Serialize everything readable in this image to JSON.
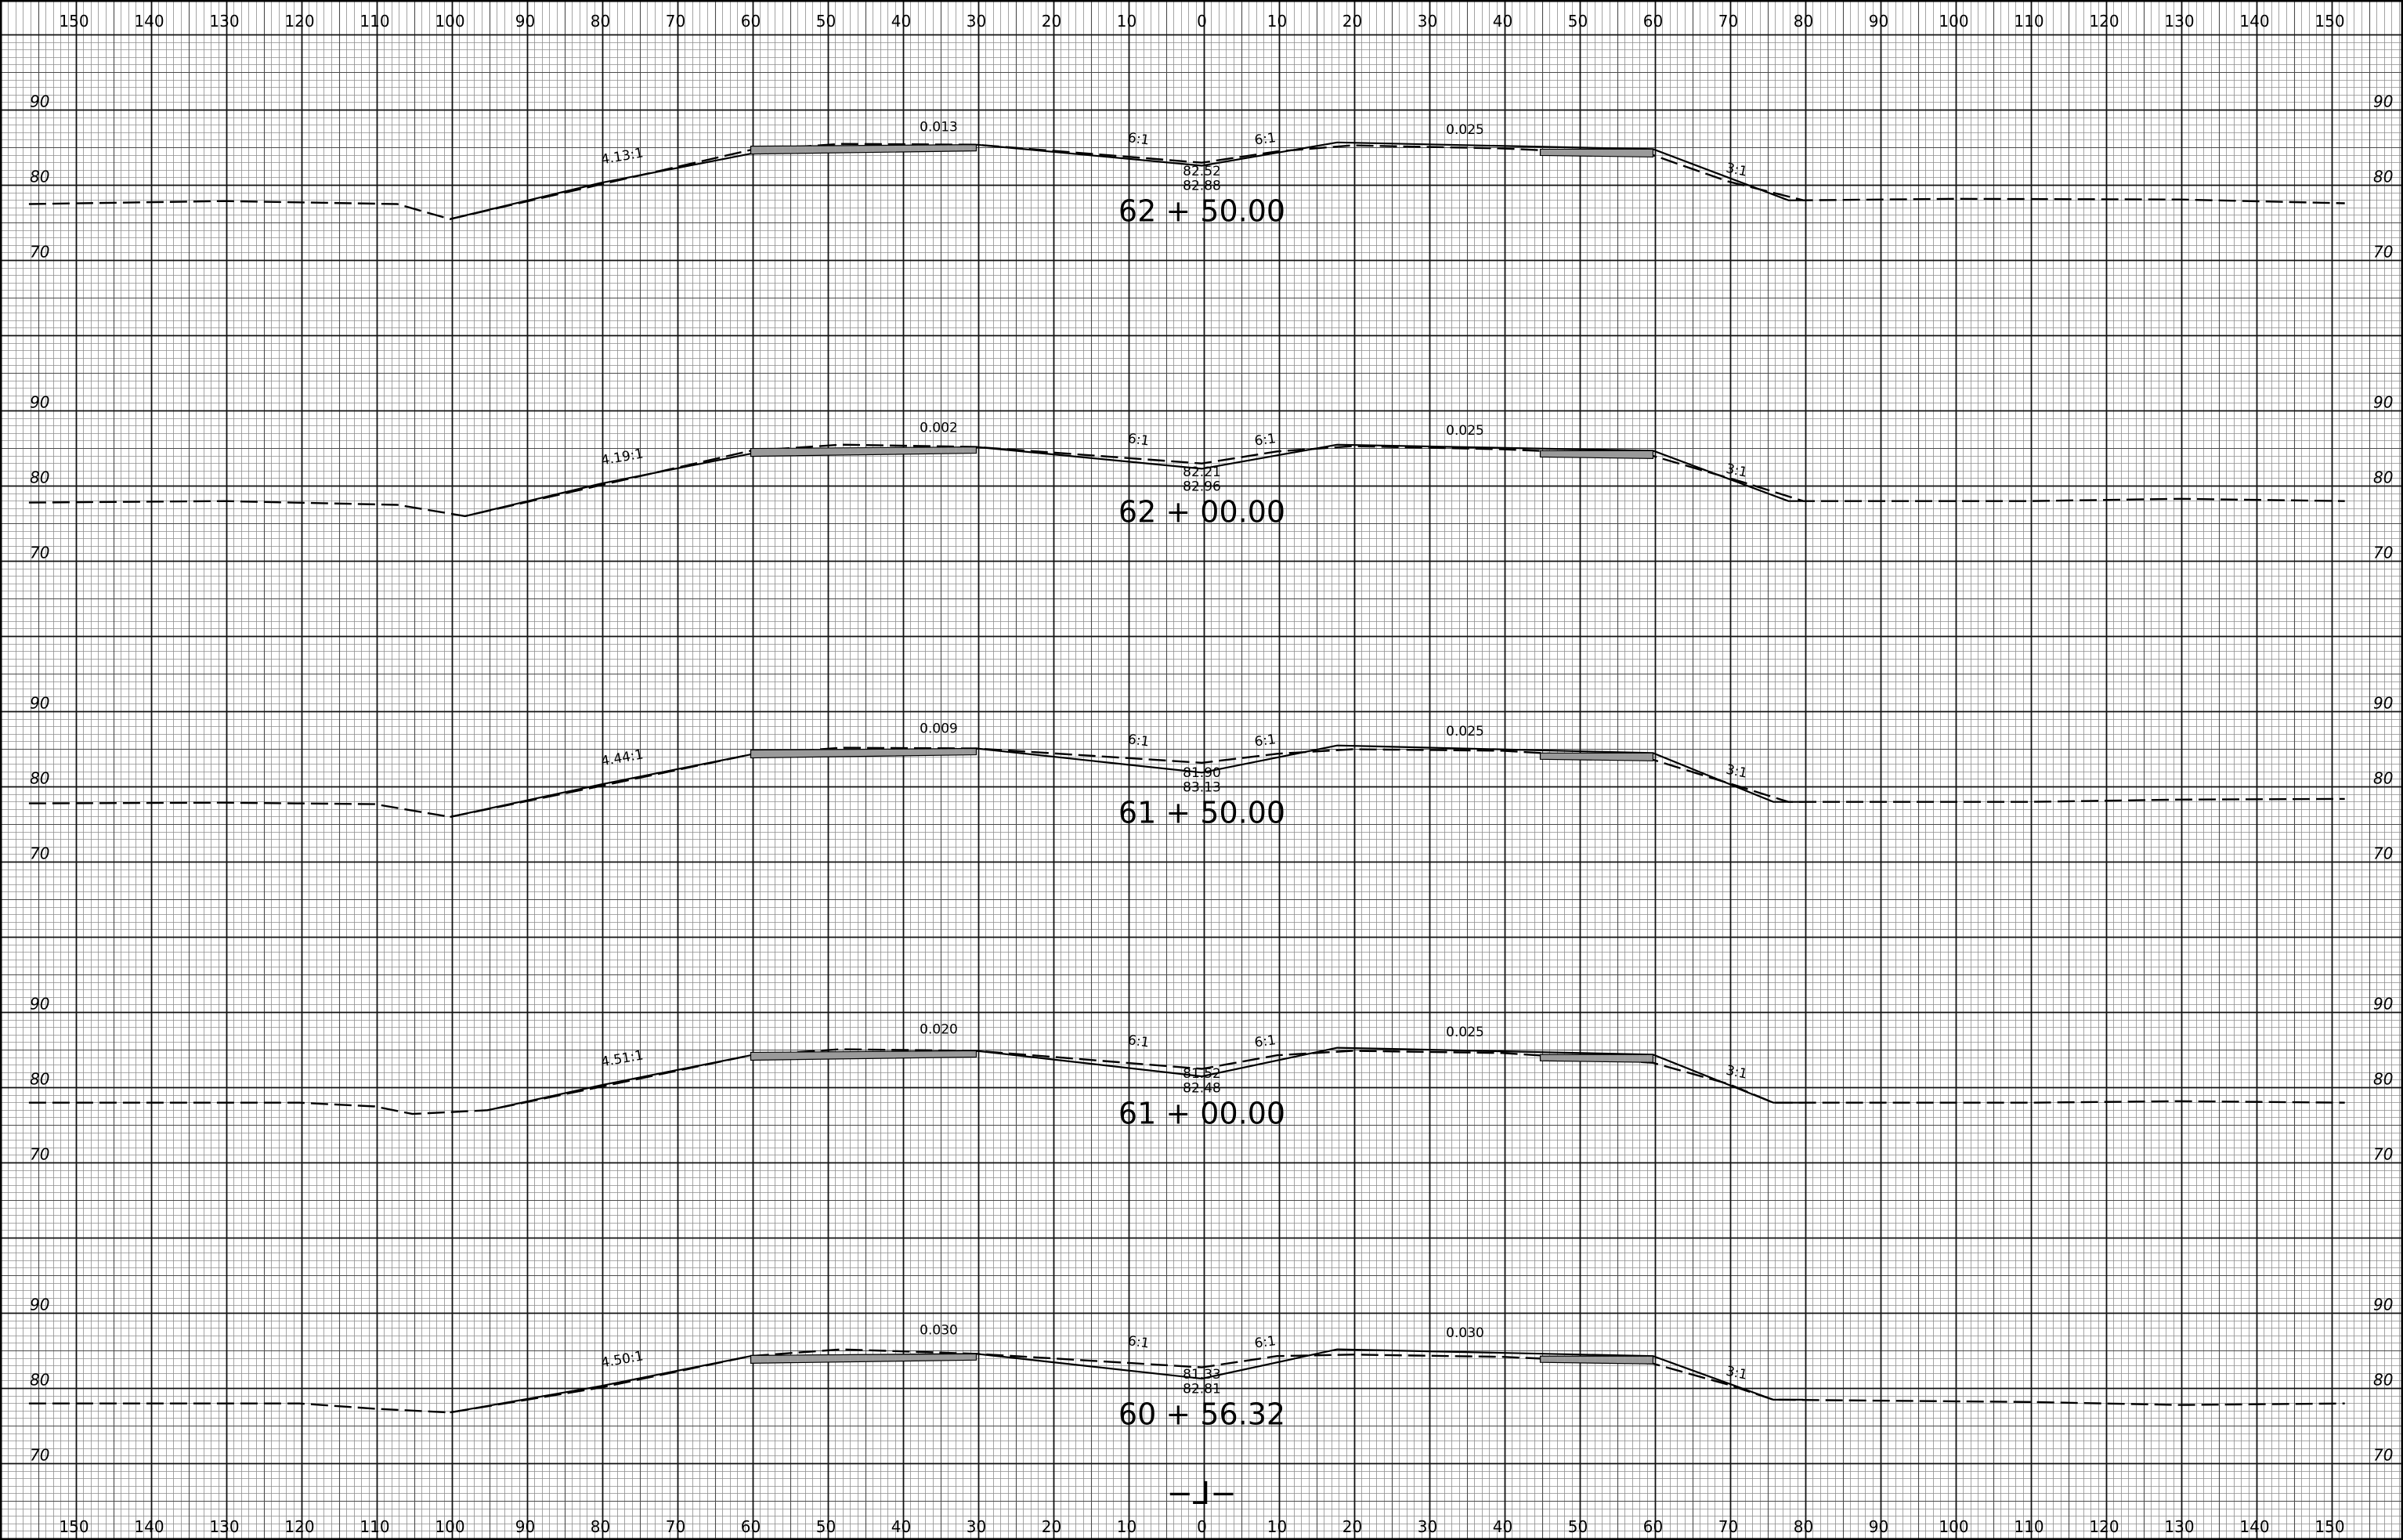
{
  "sheet": {
    "top_offset_labels": [
      "150",
      "140",
      "130",
      "120",
      "110",
      "100",
      "90",
      "80",
      "70",
      "60",
      "50",
      "40",
      "30",
      "20",
      "10",
      "0",
      "10",
      "20",
      "30",
      "40",
      "50",
      "60",
      "70",
      "80",
      "90",
      "100",
      "110",
      "120",
      "130",
      "140",
      "150"
    ],
    "bottom_offset_labels": [
      "150",
      "140",
      "130",
      "120",
      "110",
      "100",
      "90",
      "80",
      "70",
      "60",
      "50",
      "40",
      "30",
      "20",
      "10",
      "0",
      "10",
      "20",
      "30",
      "40",
      "50",
      "60",
      "70",
      "80",
      "90",
      "100",
      "110",
      "120",
      "130",
      "140",
      "150"
    ],
    "centerline_symbol": "−⅃−"
  },
  "cross_sections": [
    {
      "station": "62 + 50.00",
      "elevation_labels": [
        "90",
        "80",
        "70"
      ],
      "left_ditch_slope": "4.13:1",
      "left_cross_slope": "0.013",
      "right_cross_slope": "0.025",
      "left_inner_slope": "6:1",
      "right_inner_slope": "6:1",
      "right_fill_slope": "3:1",
      "centerline_elevations": [
        "82.52",
        "82.88"
      ],
      "existing_ground": [
        [
          -156,
          77.5
        ],
        [
          -130,
          77.9
        ],
        [
          -107,
          77.5
        ],
        [
          -100,
          75.5
        ],
        [
          -80,
          80.1
        ],
        [
          -60,
          84.7
        ],
        [
          -48,
          85.5
        ],
        [
          -30,
          85.4
        ],
        [
          0,
          83
        ],
        [
          10,
          84.5
        ],
        [
          20,
          85.3
        ],
        [
          40,
          84.9
        ],
        [
          60,
          84.0
        ],
        [
          70,
          80.5
        ],
        [
          80,
          78
        ],
        [
          100,
          78.2
        ],
        [
          130,
          78.1
        ],
        [
          152,
          77.6
        ]
      ],
      "proposed_section": [
        [
          -100,
          75.5
        ],
        [
          -80,
          80.3
        ],
        [
          -60,
          84.2
        ],
        [
          -30,
          85.4
        ],
        [
          0,
          82.6
        ],
        [
          18,
          85.7
        ],
        [
          60,
          84.8
        ],
        [
          78,
          78
        ],
        [
          80,
          78
        ]
      ]
    },
    {
      "station": "62 + 00.00",
      "elevation_labels": [
        "90",
        "80",
        "70"
      ],
      "left_ditch_slope": "4.19:1",
      "left_cross_slope": "0.002",
      "right_cross_slope": "0.025",
      "left_inner_slope": "6:1",
      "right_inner_slope": "6:1",
      "right_fill_slope": "3:1",
      "centerline_elevations": [
        "82.21",
        "82.96"
      ],
      "existing_ground": [
        [
          -156,
          77.8
        ],
        [
          -130,
          78
        ],
        [
          -107,
          77.5
        ],
        [
          -98,
          76
        ],
        [
          -80,
          80.1
        ],
        [
          -60,
          84.7
        ],
        [
          -48,
          85.5
        ],
        [
          -30,
          85.2
        ],
        [
          0,
          83
        ],
        [
          10,
          84.6
        ],
        [
          20,
          85.3
        ],
        [
          40,
          84.9
        ],
        [
          60,
          84.0
        ],
        [
          72,
          80.5
        ],
        [
          80,
          78
        ],
        [
          110,
          78
        ],
        [
          130,
          78.3
        ],
        [
          152,
          78
        ]
      ],
      "proposed_section": [
        [
          -98,
          76
        ],
        [
          -80,
          80.3
        ],
        [
          -60,
          84.3
        ],
        [
          -30,
          85.2
        ],
        [
          0,
          82.3
        ],
        [
          18,
          85.5
        ],
        [
          60,
          84.7
        ],
        [
          78,
          78
        ],
        [
          80,
          78
        ]
      ]
    },
    {
      "station": "61 + 50.00",
      "elevation_labels": [
        "90",
        "80",
        "70"
      ],
      "left_ditch_slope": "4.44:1",
      "left_cross_slope": "0.009",
      "right_cross_slope": "0.025",
      "left_inner_slope": "6:1",
      "right_inner_slope": "6:1",
      "right_fill_slope": "3:1",
      "centerline_elevations": [
        "81.90",
        "83.13"
      ],
      "existing_ground": [
        [
          -156,
          77.8
        ],
        [
          -130,
          77.9
        ],
        [
          -110,
          77.7
        ],
        [
          -100,
          76
        ],
        [
          -80,
          80.1
        ],
        [
          -60,
          84.3
        ],
        [
          -48,
          85.2
        ],
        [
          -30,
          85.1
        ],
        [
          0,
          83.2
        ],
        [
          10,
          84.4
        ],
        [
          20,
          85
        ],
        [
          40,
          84.8
        ],
        [
          60,
          83.6
        ],
        [
          70,
          80.5
        ],
        [
          78,
          78
        ],
        [
          110,
          78
        ],
        [
          130,
          78.3
        ],
        [
          152,
          78.4
        ]
      ],
      "proposed_section": [
        [
          -100,
          76
        ],
        [
          -80,
          80.3
        ],
        [
          -60,
          84.3
        ],
        [
          -30,
          85.1
        ],
        [
          0,
          81.9
        ],
        [
          18,
          85.5
        ],
        [
          60,
          84.5
        ],
        [
          76,
          78
        ],
        [
          80,
          78
        ]
      ]
    },
    {
      "station": "61 + 00.00",
      "elevation_labels": [
        "90",
        "80",
        "70"
      ],
      "left_ditch_slope": "4.51:1",
      "left_cross_slope": "0.020",
      "right_cross_slope": "0.025",
      "left_inner_slope": "6:1",
      "right_inner_slope": "6:1",
      "right_fill_slope": "3:1",
      "centerline_elevations": [
        "81.52",
        "82.48"
      ],
      "existing_ground": [
        [
          -156,
          78
        ],
        [
          -120,
          78
        ],
        [
          -110,
          77.5
        ],
        [
          -105,
          76.5
        ],
        [
          -95,
          77
        ],
        [
          -80,
          80.1
        ],
        [
          -60,
          84.3
        ],
        [
          -48,
          85.1
        ],
        [
          -30,
          84.9
        ],
        [
          0,
          82.5
        ],
        [
          10,
          84.3
        ],
        [
          20,
          84.9
        ],
        [
          40,
          84.6
        ],
        [
          60,
          83.3
        ],
        [
          70,
          80.5
        ],
        [
          76,
          78
        ],
        [
          110,
          78
        ],
        [
          130,
          78.2
        ],
        [
          152,
          78
        ]
      ],
      "proposed_section": [
        [
          -95,
          77
        ],
        [
          -80,
          80.3
        ],
        [
          -60,
          84.3
        ],
        [
          -30,
          84.9
        ],
        [
          0,
          81.5
        ],
        [
          18,
          85.3
        ],
        [
          60,
          84.4
        ],
        [
          76,
          78
        ],
        [
          80,
          78
        ]
      ]
    },
    {
      "station": "60 + 56.32",
      "elevation_labels": [
        "90",
        "80",
        "70"
      ],
      "left_ditch_slope": "4.50:1",
      "left_cross_slope": "0.030",
      "right_cross_slope": "0.030",
      "left_inner_slope": "6:1",
      "right_inner_slope": "6:1",
      "right_fill_slope": "3:1",
      "centerline_elevations": [
        "81.33",
        "82.81"
      ],
      "existing_ground": [
        [
          -156,
          78
        ],
        [
          -120,
          78
        ],
        [
          -110,
          77.3
        ],
        [
          -100,
          76.8
        ],
        [
          -80,
          80.1
        ],
        [
          -60,
          84.3
        ],
        [
          -48,
          85.2
        ],
        [
          -30,
          84.6
        ],
        [
          0,
          82.8
        ],
        [
          10,
          84.3
        ],
        [
          20,
          84.5
        ],
        [
          40,
          84.2
        ],
        [
          60,
          83.3
        ],
        [
          70,
          80.5
        ],
        [
          76,
          78.5
        ],
        [
          110,
          78.2
        ],
        [
          130,
          77.8
        ],
        [
          152,
          78
        ]
      ],
      "proposed_section": [
        [
          -100,
          76.8
        ],
        [
          -80,
          80.3
        ],
        [
          -60,
          84.3
        ],
        [
          -30,
          84.6
        ],
        [
          0,
          81.3
        ],
        [
          18,
          85.2
        ],
        [
          60,
          84.3
        ],
        [
          76,
          78.5
        ],
        [
          80,
          78.5
        ]
      ]
    }
  ]
}
